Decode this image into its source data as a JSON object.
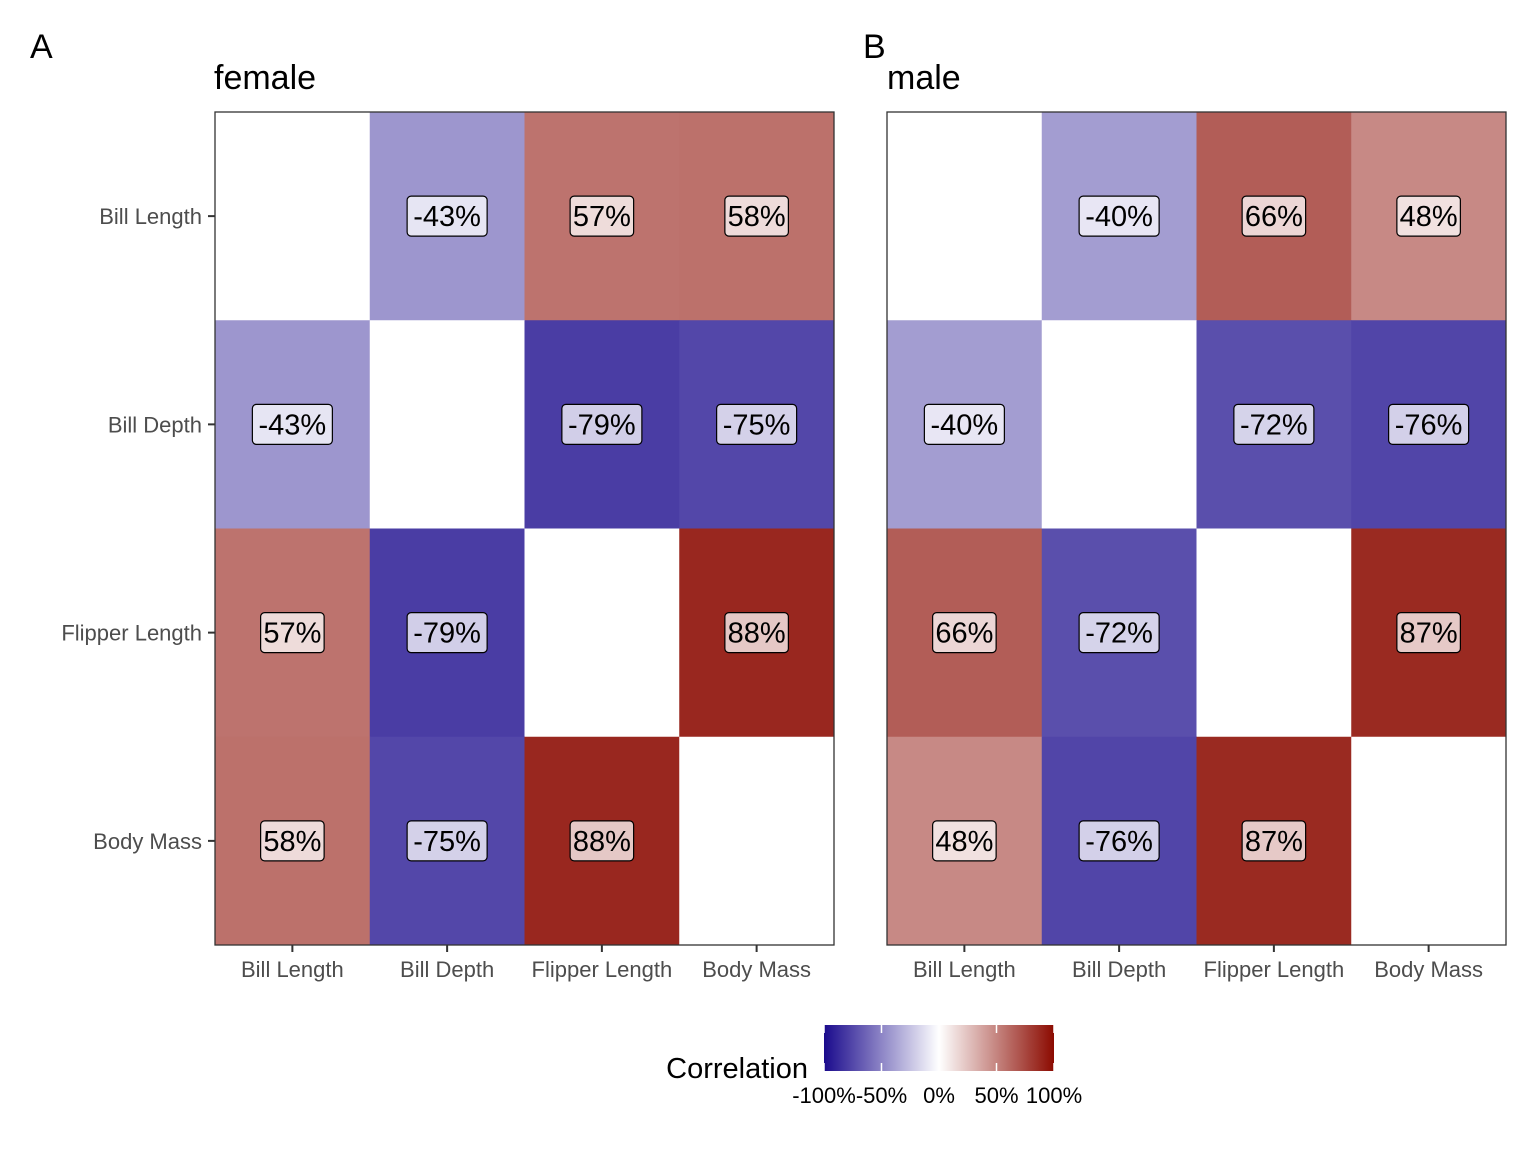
{
  "chart_data": {
    "type": "heatmap",
    "legend": {
      "title": "Correlation",
      "breaks": [
        -100,
        -50,
        0,
        50,
        100
      ],
      "break_labels": [
        "-100%",
        "-50%",
        "0%",
        "50%",
        "100%"
      ],
      "range": [
        -100,
        100
      ],
      "colors": {
        "low": "#1a0a8c",
        "mid": "#ffffff",
        "high": "#8b0a00"
      },
      "placement": "bottom"
    },
    "panels": [
      {
        "tag": "A",
        "title": "female",
        "x_categories": [
          "Bill Length",
          "Bill Depth",
          "Flipper Length",
          "Body Mass"
        ],
        "y_categories": [
          "Bill Length",
          "Bill Depth",
          "Flipper Length",
          "Body Mass"
        ],
        "matrix": [
          [
            null,
            -43,
            57,
            58
          ],
          [
            -43,
            null,
            -79,
            -75
          ],
          [
            57,
            -79,
            null,
            88
          ],
          [
            58,
            -75,
            88,
            null
          ]
        ],
        "labels": [
          [
            null,
            "-43%",
            "57%",
            "58%"
          ],
          [
            "-43%",
            null,
            "-79%",
            "-75%"
          ],
          [
            "57%",
            "-79%",
            null,
            "88%"
          ],
          [
            "58%",
            "-75%",
            "88%",
            null
          ]
        ]
      },
      {
        "tag": "B",
        "title": "male",
        "x_categories": [
          "Bill Length",
          "Bill Depth",
          "Flipper Length",
          "Body Mass"
        ],
        "y_categories": [
          "Bill Length",
          "Bill Depth",
          "Flipper Length",
          "Body Mass"
        ],
        "matrix": [
          [
            null,
            -40,
            66,
            48
          ],
          [
            -40,
            null,
            -72,
            -76
          ],
          [
            66,
            -72,
            null,
            87
          ],
          [
            48,
            -76,
            87,
            null
          ]
        ],
        "labels": [
          [
            null,
            "-40%",
            "66%",
            "48%"
          ],
          [
            "-40%",
            null,
            "-72%",
            "-76%"
          ],
          [
            "66%",
            "-72%",
            null,
            "87%"
          ],
          [
            "48%",
            "-76%",
            "87%",
            null
          ]
        ]
      }
    ]
  }
}
